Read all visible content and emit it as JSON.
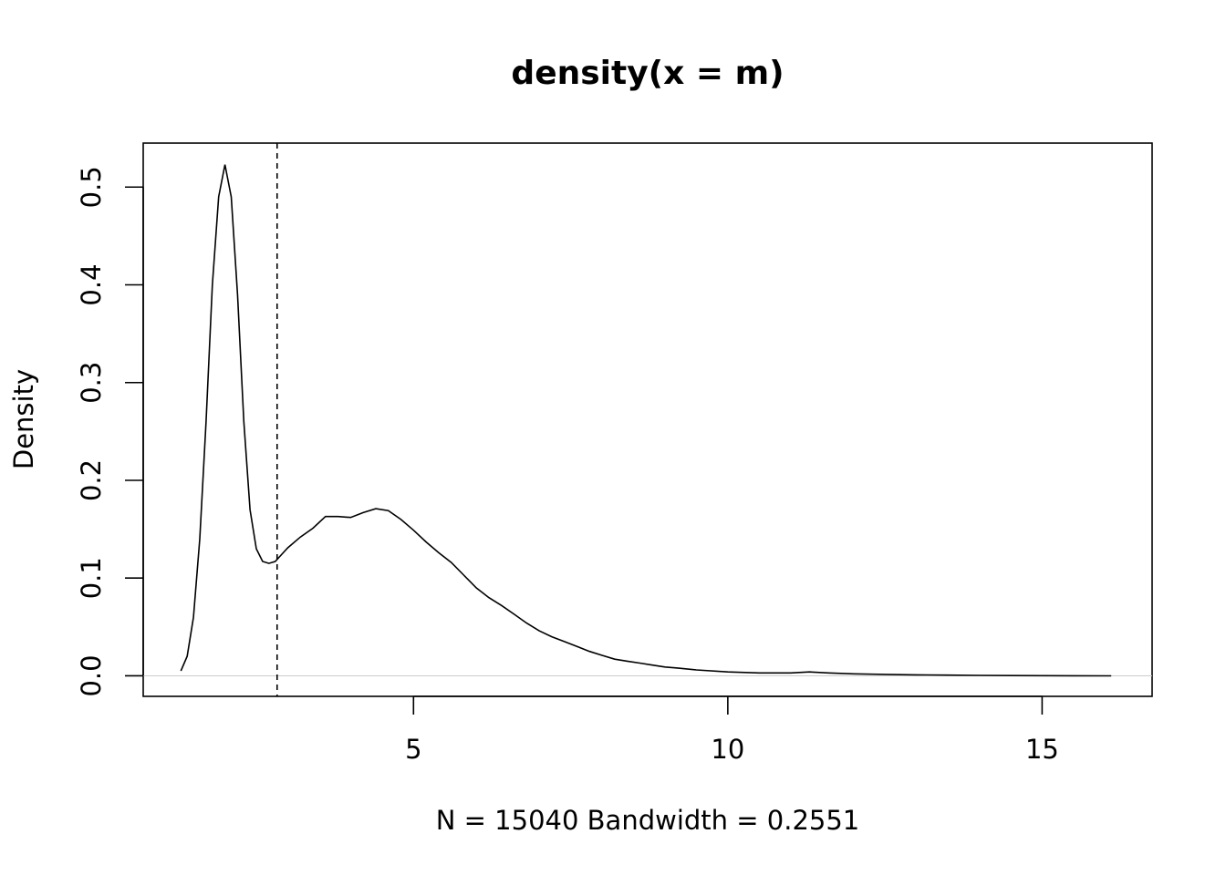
{
  "chart_data": {
    "type": "line",
    "title": "density(x = m)",
    "xlabel": "N = 15040   Bandwidth = 0.2551",
    "ylabel": "Density",
    "xlim": [
      0.7,
      16.75
    ],
    "ylim": [
      -0.021,
      0.545
    ],
    "x_ticks": [
      5,
      10,
      15
    ],
    "x_tick_labels": [
      "5",
      "10",
      "15"
    ],
    "y_ticks": [
      0.0,
      0.1,
      0.2,
      0.3,
      0.4,
      0.5
    ],
    "y_tick_labels": [
      "0.0",
      "0.1",
      "0.2",
      "0.3",
      "0.4",
      "0.5"
    ],
    "grid": false,
    "reference_line": {
      "style": "dashed",
      "x": 2.83
    },
    "zero_line": {
      "y": 0,
      "color": "#cccccc"
    },
    "series": [
      {
        "color": "#000000",
        "x": [
          1.3,
          1.4,
          1.5,
          1.6,
          1.7,
          1.8,
          1.9,
          2.0,
          2.1,
          2.2,
          2.3,
          2.4,
          2.5,
          2.6,
          2.7,
          2.8,
          2.9,
          3.0,
          3.2,
          3.4,
          3.6,
          3.8,
          4.0,
          4.2,
          4.4,
          4.6,
          4.8,
          5.0,
          5.2,
          5.4,
          5.6,
          5.8,
          6.0,
          6.2,
          6.4,
          6.6,
          6.8,
          7.0,
          7.2,
          7.4,
          7.6,
          7.8,
          8.0,
          8.2,
          8.4,
          8.6,
          8.8,
          9.0,
          9.2,
          9.5,
          10.0,
          10.5,
          11.0,
          11.3,
          11.6,
          12.0,
          12.5,
          13.0,
          13.5,
          14.0,
          14.5,
          15.0,
          15.5,
          16.1
        ],
        "y": [
          0.005,
          0.02,
          0.06,
          0.14,
          0.26,
          0.4,
          0.49,
          0.523,
          0.49,
          0.39,
          0.26,
          0.17,
          0.13,
          0.117,
          0.115,
          0.117,
          0.124,
          0.131,
          0.142,
          0.151,
          0.163,
          0.163,
          0.162,
          0.167,
          0.171,
          0.169,
          0.16,
          0.149,
          0.137,
          0.126,
          0.116,
          0.103,
          0.09,
          0.08,
          0.072,
          0.063,
          0.054,
          0.046,
          0.04,
          0.035,
          0.03,
          0.025,
          0.021,
          0.017,
          0.015,
          0.013,
          0.011,
          0.009,
          0.008,
          0.006,
          0.004,
          0.003,
          0.003,
          0.004,
          0.003,
          0.002,
          0.0015,
          0.001,
          0.0007,
          0.0004,
          0.0003,
          0.0002,
          0.0001,
          0.0
        ]
      }
    ]
  }
}
